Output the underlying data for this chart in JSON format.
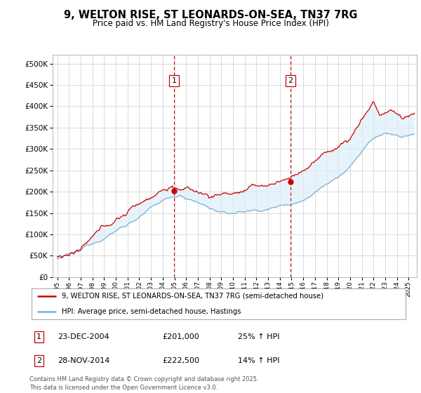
{
  "title_line1": "9, WELTON RISE, ST LEONARDS-ON-SEA, TN37 7RG",
  "title_line2": "Price paid vs. HM Land Registry's House Price Index (HPI)",
  "legend_line1": "9, WELTON RISE, ST LEONARDS-ON-SEA, TN37 7RG (semi-detached house)",
  "legend_line2": "HPI: Average price, semi-detached house, Hastings",
  "ann1_label": "1",
  "ann1_date": "23-DEC-2004",
  "ann1_price": "£201,000",
  "ann1_hpi": "25% ↑ HPI",
  "ann1_x": 2004.97,
  "ann1_y": 201000,
  "ann2_label": "2",
  "ann2_date": "28-NOV-2014",
  "ann2_price": "£222,500",
  "ann2_hpi": "14% ↑ HPI",
  "ann2_x": 2014.91,
  "ann2_y": 222500,
  "footer": "Contains HM Land Registry data © Crown copyright and database right 2025.\nThis data is licensed under the Open Government Licence v3.0.",
  "red_color": "#cc0000",
  "blue_color": "#7aadd4",
  "fill_color": "#dceef8",
  "vline_color": "#cc0000",
  "ylim": [
    0,
    520000
  ],
  "yticks": [
    0,
    50000,
    100000,
    150000,
    200000,
    250000,
    300000,
    350000,
    400000,
    450000,
    500000
  ],
  "xlim_start": 1994.6,
  "xlim_end": 2025.7
}
